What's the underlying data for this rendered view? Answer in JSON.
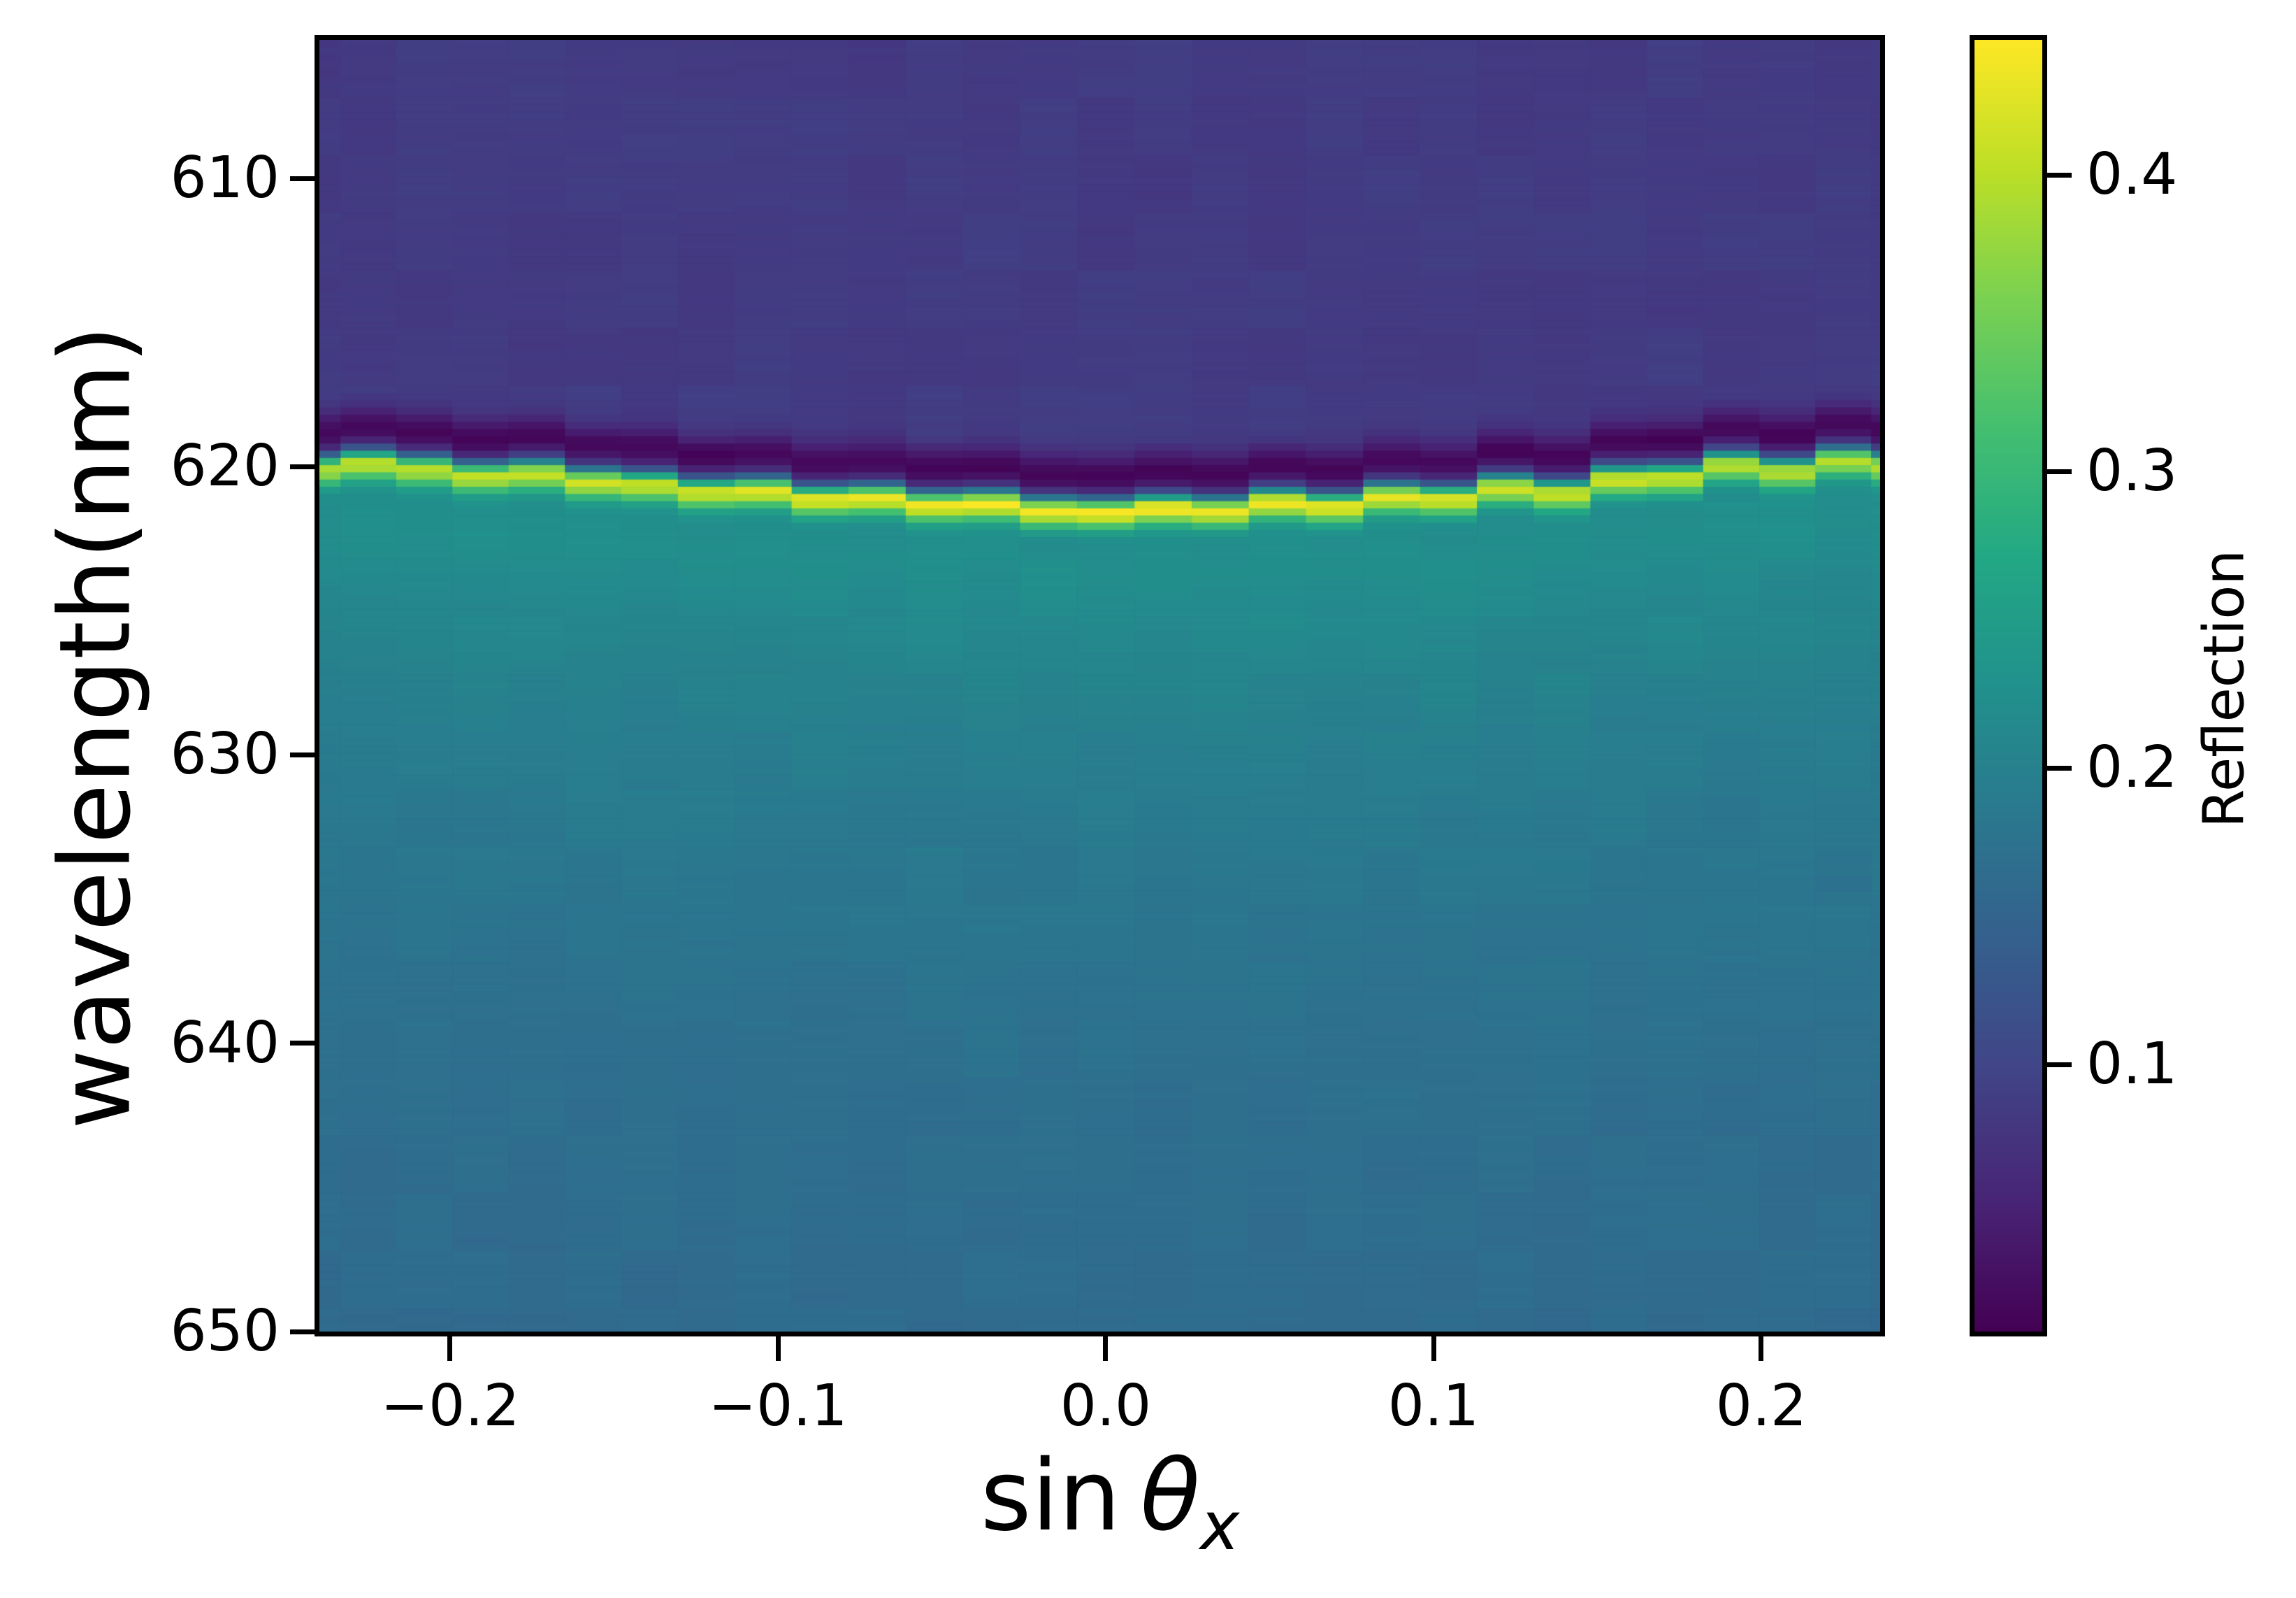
{
  "figure": {
    "background": "#ffffff",
    "spine_color": "#000000"
  },
  "axes": {
    "y_title": "wavelength(nm)",
    "x_title": {
      "sin": "sin",
      "theta": "θ",
      "subscript": "x"
    },
    "x_ticks": [
      {
        "label": "−0.2",
        "value": -0.2
      },
      {
        "label": "−0.1",
        "value": -0.1
      },
      {
        "label": "0.0",
        "value": 0.0
      },
      {
        "label": "0.1",
        "value": 0.1
      },
      {
        "label": "0.2",
        "value": 0.2
      }
    ],
    "y_ticks": [
      {
        "label": "610",
        "value": 610
      },
      {
        "label": "620",
        "value": 620
      },
      {
        "label": "630",
        "value": 630
      },
      {
        "label": "640",
        "value": 640
      },
      {
        "label": "650",
        "value": 650
      }
    ]
  },
  "colorbar": {
    "title": "Reflection",
    "ticks": [
      {
        "label": "0.4",
        "value": 0.4
      },
      {
        "label": "0.3",
        "value": 0.3
      },
      {
        "label": "0.2",
        "value": 0.2
      },
      {
        "label": "0.1",
        "value": 0.1
      }
    ]
  },
  "chart_data": {
    "type": "heatmap",
    "title": "",
    "xlabel": "sin θx",
    "ylabel": "wavelength(nm)",
    "colorbar_label": "Reflection",
    "colormap": "viridis",
    "x_range": [
      -0.2399,
      0.2362
    ],
    "wavelength_range_nm": [
      605.2,
      650.0
    ],
    "x_tick_values": [
      -0.2,
      -0.1,
      0.0,
      0.1,
      0.2
    ],
    "y_tick_values": [
      610,
      620,
      630,
      640,
      650
    ],
    "colorbar_tick_values": [
      0.1,
      0.2,
      0.3,
      0.4
    ],
    "value_range": [
      0.01,
      0.4455
    ],
    "row_step_nm": 0.25,
    "description": "Angle-resolved reflection spectrum: narrow bright resonance band near 620-621.5 nm (peak reflection ~0.40-0.45) that red-shifts parabolically toward normal incidence, with a near-zero dark dip just above the band (~0.01), purple background ~0.085 at shorter wavelengths, and teal fading to steel-blue (~0.23 to ~0.155) at longer wavelengths.",
    "columns": [
      {
        "theta_deg": -14,
        "sin_theta": -0.2419,
        "band_center_nm": 620.05,
        "peak_reflection": 0.395
      },
      {
        "theta_deg": -13,
        "sin_theta": -0.225,
        "band_center_nm": 619.85,
        "peak_reflection": 0.405
      },
      {
        "theta_deg": -12,
        "sin_theta": -0.2079,
        "band_center_nm": 620.05,
        "peak_reflection": 0.4
      },
      {
        "theta_deg": -11,
        "sin_theta": -0.1908,
        "band_center_nm": 620.3,
        "peak_reflection": 0.41
      },
      {
        "theta_deg": -10,
        "sin_theta": -0.1736,
        "band_center_nm": 620.2,
        "peak_reflection": 0.405
      },
      {
        "theta_deg": -9,
        "sin_theta": -0.1564,
        "band_center_nm": 620.5,
        "peak_reflection": 0.415
      },
      {
        "theta_deg": -8,
        "sin_theta": -0.1392,
        "band_center_nm": 620.6,
        "peak_reflection": 0.41
      },
      {
        "theta_deg": -7,
        "sin_theta": -0.1219,
        "band_center_nm": 620.85,
        "peak_reflection": 0.42
      },
      {
        "theta_deg": -6,
        "sin_theta": -0.1045,
        "band_center_nm": 620.8,
        "peak_reflection": 0.425
      },
      {
        "theta_deg": -5,
        "sin_theta": -0.0872,
        "band_center_nm": 621.1,
        "peak_reflection": 0.43
      },
      {
        "theta_deg": -4,
        "sin_theta": -0.0698,
        "band_center_nm": 621.05,
        "peak_reflection": 0.435
      },
      {
        "theta_deg": -3,
        "sin_theta": -0.0523,
        "band_center_nm": 621.3,
        "peak_reflection": 0.44
      },
      {
        "theta_deg": -2,
        "sin_theta": -0.0349,
        "band_center_nm": 621.25,
        "peak_reflection": 0.445
      },
      {
        "theta_deg": -1,
        "sin_theta": -0.0175,
        "band_center_nm": 621.5,
        "peak_reflection": 0.445
      },
      {
        "theta_deg": 0,
        "sin_theta": 0.0,
        "band_center_nm": 621.55,
        "peak_reflection": 0.445
      },
      {
        "theta_deg": 1,
        "sin_theta": 0.0175,
        "band_center_nm": 621.4,
        "peak_reflection": 0.445
      },
      {
        "theta_deg": 2,
        "sin_theta": 0.0349,
        "band_center_nm": 621.5,
        "peak_reflection": 0.44
      },
      {
        "theta_deg": 3,
        "sin_theta": 0.0523,
        "band_center_nm": 621.2,
        "peak_reflection": 0.44
      },
      {
        "theta_deg": 4,
        "sin_theta": 0.0698,
        "band_center_nm": 621.35,
        "peak_reflection": 0.435
      },
      {
        "theta_deg": 5,
        "sin_theta": 0.0872,
        "band_center_nm": 621.0,
        "peak_reflection": 0.43
      },
      {
        "theta_deg": 6,
        "sin_theta": 0.1045,
        "band_center_nm": 621.1,
        "peak_reflection": 0.425
      },
      {
        "theta_deg": 7,
        "sin_theta": 0.1219,
        "band_center_nm": 620.7,
        "peak_reflection": 0.42
      },
      {
        "theta_deg": 8,
        "sin_theta": 0.1392,
        "band_center_nm": 620.9,
        "peak_reflection": 0.415
      },
      {
        "theta_deg": 9,
        "sin_theta": 0.1564,
        "band_center_nm": 620.4,
        "peak_reflection": 0.415
      },
      {
        "theta_deg": 10,
        "sin_theta": 0.1736,
        "band_center_nm": 620.35,
        "peak_reflection": 0.41
      },
      {
        "theta_deg": 11,
        "sin_theta": 0.1908,
        "band_center_nm": 619.9,
        "peak_reflection": 0.405
      },
      {
        "theta_deg": 12,
        "sin_theta": 0.2079,
        "band_center_nm": 620.15,
        "peak_reflection": 0.4
      },
      {
        "theta_deg": 13,
        "sin_theta": 0.225,
        "band_center_nm": 619.75,
        "peak_reflection": 0.4
      },
      {
        "theta_deg": 14,
        "sin_theta": 0.2419,
        "band_center_nm": 619.95,
        "peak_reflection": 0.395
      }
    ],
    "model": {
      "background_above": 0.085,
      "background_below_base": 0.154,
      "background_below_amp": 0.085,
      "background_below_decay_nm": 12,
      "transition_sharpness_nm": 0.5,
      "dip_depth": 0.082,
      "dip_offset_nm": 1.15,
      "dip_sigma_nm": 0.75,
      "peak_base_offset": 0.16,
      "peak_sigma_above_nm": 0.38,
      "peak_sigma_below_nm": 0.58,
      "noise_chunk": 0.008,
      "noise_fine": 0.003
    },
    "viridis_anchors": [
      "#440154",
      "#482475",
      "#414487",
      "#355f8d",
      "#2a788e",
      "#21918c",
      "#22a884",
      "#44bf70",
      "#7ad151",
      "#bddf26",
      "#fde725"
    ]
  }
}
